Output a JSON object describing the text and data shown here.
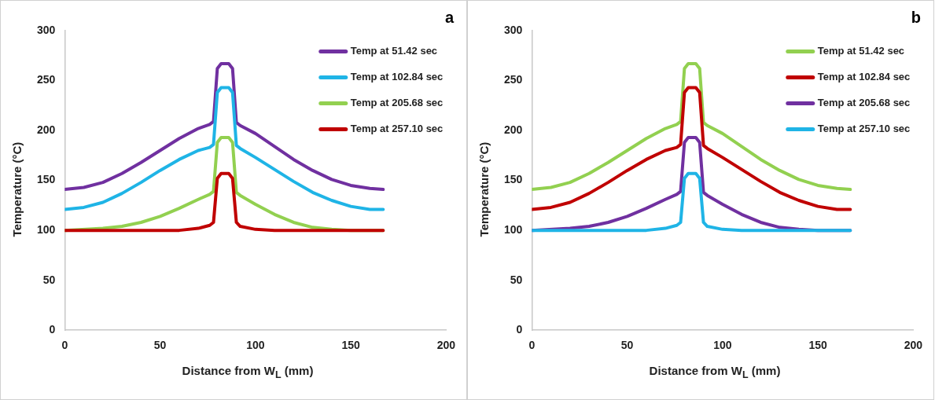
{
  "chart_data": [
    {
      "type": "line",
      "title": "a",
      "xlabel": "Distance from W$_{L}$ (mm)",
      "ylabel": "Temperature (°C)",
      "xlim": [
        0,
        200
      ],
      "xticks": [
        0,
        50,
        100,
        150,
        200
      ],
      "ylim": [
        0,
        300
      ],
      "yticks": [
        0,
        50,
        100,
        150,
        200,
        250,
        300
      ],
      "grid": false,
      "legend": "top right",
      "series": [
        {
          "name": "Temp at 51.42 sec",
          "color": "#7030a0",
          "x": [
            0,
            10,
            20,
            30,
            40,
            50,
            60,
            70,
            76,
            78,
            80,
            82,
            86,
            88,
            90,
            92,
            100,
            110,
            120,
            130,
            140,
            150,
            160,
            167
          ],
          "values": [
            141,
            143,
            148,
            157,
            168,
            180,
            192,
            202,
            206,
            209,
            262,
            267,
            267,
            262,
            208,
            205,
            197,
            184,
            171,
            160,
            151,
            145,
            142,
            141
          ]
        },
        {
          "name": "Temp at 102.84 sec",
          "color": "#1fb4e6",
          "x": [
            0,
            10,
            20,
            30,
            40,
            50,
            60,
            70,
            76,
            78,
            80,
            82,
            86,
            88,
            90,
            92,
            100,
            110,
            120,
            130,
            140,
            150,
            160,
            167
          ],
          "values": [
            121,
            123,
            128,
            137,
            148,
            160,
            171,
            180,
            183,
            186,
            238,
            243,
            243,
            238,
            185,
            182,
            173,
            161,
            149,
            138,
            130,
            124,
            121,
            121
          ]
        },
        {
          "name": "Temp at 205.68 sec",
          "color": "#92d050",
          "x": [
            0,
            20,
            30,
            40,
            50,
            60,
            70,
            76,
            78,
            80,
            82,
            86,
            88,
            90,
            92,
            100,
            110,
            120,
            130,
            140,
            150,
            167
          ],
          "values": [
            100,
            102,
            104,
            108,
            114,
            122,
            131,
            136,
            139,
            188,
            193,
            193,
            188,
            138,
            135,
            126,
            116,
            108,
            103,
            101,
            100,
            100
          ]
        },
        {
          "name": "Temp at 257.10 sec",
          "color": "#c00000",
          "x": [
            0,
            60,
            70,
            76,
            78,
            80,
            82,
            86,
            88,
            90,
            92,
            100,
            110,
            167
          ],
          "values": [
            100,
            100,
            102,
            105,
            108,
            152,
            157,
            157,
            152,
            108,
            104,
            101,
            100,
            100
          ]
        }
      ]
    },
    {
      "type": "line",
      "title": "b",
      "xlabel": "Distance from W$_{L}$ (mm)",
      "ylabel": "Temperature (°C)",
      "xlim": [
        0,
        200
      ],
      "xticks": [
        0,
        50,
        100,
        150,
        200
      ],
      "ylim": [
        0,
        300
      ],
      "yticks": [
        0,
        50,
        100,
        150,
        200,
        250,
        300
      ],
      "grid": false,
      "legend": "top right",
      "series": [
        {
          "name": "Temp at 51.42 sec",
          "color": "#92d050",
          "x": [
            0,
            10,
            20,
            30,
            40,
            50,
            60,
            70,
            76,
            78,
            80,
            82,
            86,
            88,
            90,
            92,
            100,
            110,
            120,
            130,
            140,
            150,
            160,
            167
          ],
          "values": [
            141,
            143,
            148,
            157,
            168,
            180,
            192,
            202,
            206,
            209,
            262,
            267,
            267,
            262,
            208,
            205,
            197,
            184,
            171,
            160,
            151,
            145,
            142,
            141
          ]
        },
        {
          "name": "Temp at 102.84 sec",
          "color": "#c00000",
          "x": [
            0,
            10,
            20,
            30,
            40,
            50,
            60,
            70,
            76,
            78,
            80,
            82,
            86,
            88,
            90,
            92,
            100,
            110,
            120,
            130,
            140,
            150,
            160,
            167
          ],
          "values": [
            121,
            123,
            128,
            137,
            148,
            160,
            171,
            180,
            183,
            186,
            238,
            243,
            243,
            238,
            185,
            182,
            173,
            161,
            149,
            138,
            130,
            124,
            121,
            121
          ]
        },
        {
          "name": "Temp at 205.68 sec",
          "color": "#7030a0",
          "x": [
            0,
            20,
            30,
            40,
            50,
            60,
            70,
            76,
            78,
            80,
            82,
            86,
            88,
            90,
            92,
            100,
            110,
            120,
            130,
            140,
            150,
            167
          ],
          "values": [
            100,
            102,
            104,
            108,
            114,
            122,
            131,
            136,
            139,
            188,
            193,
            193,
            188,
            138,
            135,
            126,
            116,
            108,
            103,
            101,
            100,
            100
          ]
        },
        {
          "name": "Temp at 257.10 sec",
          "color": "#1fb4e6",
          "x": [
            0,
            60,
            70,
            76,
            78,
            80,
            82,
            86,
            88,
            90,
            92,
            100,
            110,
            167
          ],
          "values": [
            100,
            100,
            102,
            105,
            108,
            152,
            157,
            157,
            152,
            108,
            104,
            101,
            100,
            100
          ]
        }
      ]
    }
  ]
}
